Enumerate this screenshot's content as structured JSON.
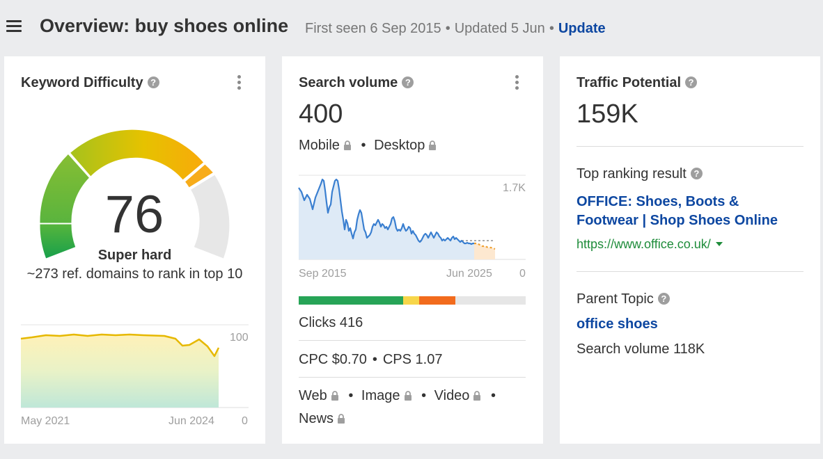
{
  "header": {
    "title": "Overview: buy shoes online",
    "first_seen": "First seen 6 Sep 2015",
    "updated": "Updated 5 Jun",
    "update_link": "Update",
    "separator": "•"
  },
  "keyword_difficulty": {
    "title": "Keyword Difficulty",
    "score": "76",
    "score_value": 76,
    "label": "Super hard",
    "description": "~273 ref. domains to rank in top 10",
    "chart": {
      "x_start": "May 2021",
      "x_end": "Jun 2024",
      "y_max": "100",
      "y_min": "0",
      "line_color": "#e6b800"
    }
  },
  "search_volume": {
    "title": "Search volume",
    "value": "400",
    "mobile_label": "Mobile",
    "desktop_label": "Desktop",
    "chart": {
      "x_start": "Sep 2015",
      "x_end": "Jun 2025",
      "y_max": "1.7K",
      "y_min": "0",
      "line_color": "#3a7fd0",
      "forecast_color": "#f0a030"
    },
    "bar": [
      {
        "color": "#27a457",
        "fraction": 0.46
      },
      {
        "color": "#f7d64a",
        "fraction": 0.07
      },
      {
        "color": "#f26b1d",
        "fraction": 0.16
      },
      {
        "color": "#e6e6e6",
        "fraction": 0.31
      }
    ],
    "clicks": "Clicks 416",
    "cpc": "CPC $0.70",
    "cps": "CPS 1.07",
    "serp_types": {
      "web": "Web",
      "image": "Image",
      "video": "Video",
      "news": "News"
    }
  },
  "traffic_potential": {
    "title": "Traffic Potential",
    "value": "159K",
    "top_result_label": "Top ranking result",
    "top_result_title_line1": "OFFICE: Shoes, Boots &",
    "top_result_title_line2": "Footwear | Shop Shoes Online",
    "top_result_url": "https://www.office.co.uk/",
    "parent_topic_label": "Parent Topic",
    "parent_topic": "office shoes",
    "parent_topic_volume": "Search volume 118K"
  }
}
